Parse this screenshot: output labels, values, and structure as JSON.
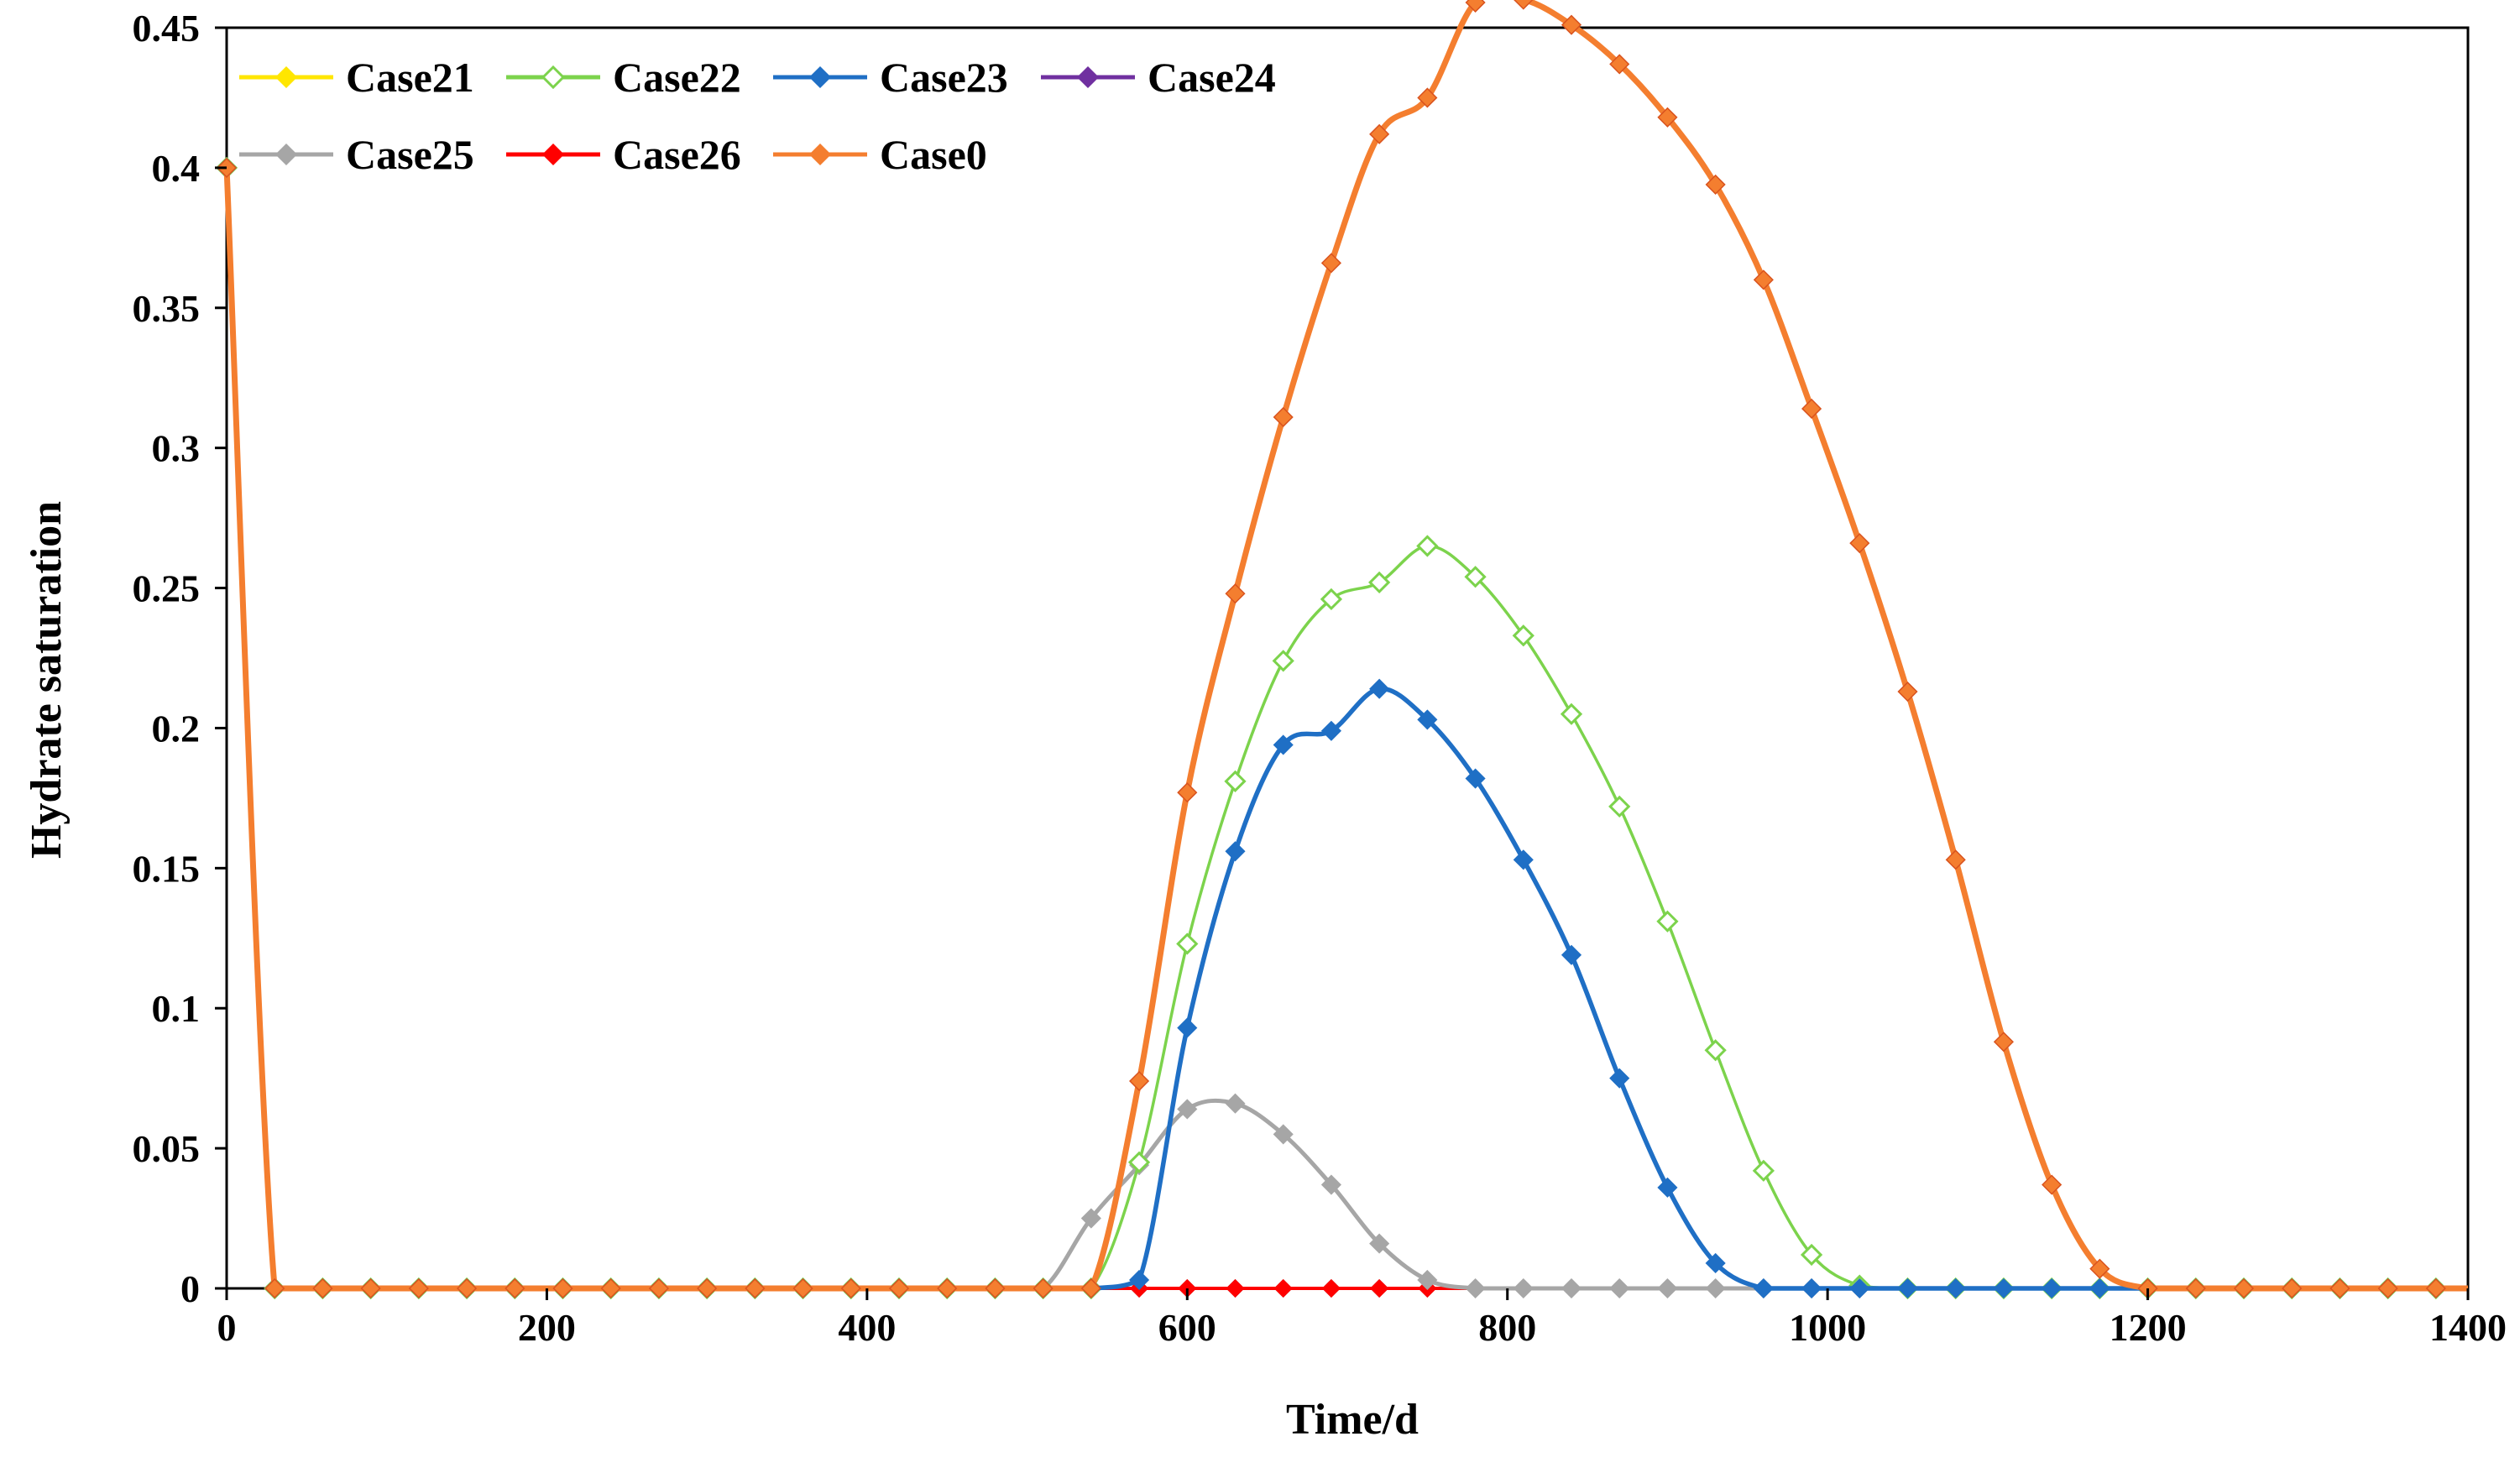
{
  "chart_data": {
    "type": "line",
    "title": "",
    "xlabel": "Time/d",
    "ylabel": "Hydrate saturation",
    "xlim": [
      0,
      1400
    ],
    "ylim": [
      0,
      0.45
    ],
    "xticks": [
      0,
      200,
      400,
      600,
      800,
      1000,
      1200,
      1400
    ],
    "yticks": [
      0,
      0.05,
      0.1,
      0.15,
      0.2,
      0.25,
      0.3,
      0.35,
      0.4,
      0.45
    ],
    "ytick_labels": [
      "0",
      "0.05",
      "0.1",
      "0.15",
      "0.2",
      "0.25",
      "0.3",
      "0.35",
      "0.4",
      "0.45"
    ],
    "legend_position": "top-left",
    "grid": false,
    "x": [
      0,
      30,
      60,
      90,
      120,
      150,
      180,
      210,
      240,
      270,
      300,
      330,
      360,
      390,
      420,
      450,
      480,
      510,
      540,
      570,
      600,
      630,
      660,
      690,
      720,
      750,
      780,
      810,
      840,
      870,
      900,
      930,
      960,
      990,
      1020,
      1050,
      1080,
      1110,
      1140,
      1170,
      1200,
      1230,
      1260,
      1290,
      1320,
      1350,
      1380,
      1400
    ],
    "series": [
      {
        "name": "Case21",
        "color": "#FFE600",
        "marker": "diamond-filled",
        "values": [
          0.4,
          0,
          0,
          0,
          0,
          0,
          0,
          0,
          0,
          0,
          0,
          0,
          0,
          0,
          0,
          0,
          0,
          0,
          0,
          0,
          0,
          0,
          0,
          0,
          0,
          0,
          0,
          0,
          0,
          0,
          0,
          0,
          0,
          0,
          0,
          0,
          0,
          0,
          0,
          0,
          0,
          0,
          0,
          0,
          0,
          0,
          0,
          0
        ]
      },
      {
        "name": "Case22",
        "color": "#7CD34C",
        "marker": "diamond-open",
        "values": [
          0.4,
          0,
          0,
          0,
          0,
          0,
          0,
          0,
          0,
          0,
          0,
          0,
          0,
          0,
          0,
          0,
          0,
          0,
          0,
          0.045,
          0.123,
          0.181,
          0.224,
          0.246,
          0.252,
          0.265,
          0.254,
          0.233,
          0.205,
          0.172,
          0.131,
          0.085,
          0.042,
          0.012,
          0.001,
          0,
          0,
          0,
          0,
          0,
          0,
          0,
          0,
          0,
          0,
          0,
          0,
          0
        ]
      },
      {
        "name": "Case23",
        "color": "#1F6FC5",
        "marker": "diamond-filled",
        "values": [
          0.4,
          0,
          0,
          0,
          0,
          0,
          0,
          0,
          0,
          0,
          0,
          0,
          0,
          0,
          0,
          0,
          0,
          0,
          0,
          0.003,
          0.093,
          0.156,
          0.194,
          0.199,
          0.214,
          0.203,
          0.182,
          0.153,
          0.119,
          0.075,
          0.036,
          0.009,
          0,
          0,
          0,
          0,
          0,
          0,
          0,
          0,
          0,
          0,
          0,
          0,
          0,
          0,
          0,
          0
        ]
      },
      {
        "name": "Case24",
        "color": "#7030A0",
        "marker": "diamond-filled",
        "values": [
          0.4,
          0,
          0,
          0,
          0,
          0,
          0,
          0,
          0,
          0,
          0,
          0,
          0,
          0,
          0,
          0,
          0,
          0,
          0,
          0,
          0,
          0,
          0,
          0,
          0,
          0,
          0,
          0,
          0,
          0,
          0,
          0,
          0,
          0,
          0,
          0,
          0,
          0,
          0,
          0,
          0,
          0,
          0,
          0,
          0,
          0,
          0,
          0
        ]
      },
      {
        "name": "Case25",
        "color": "#A6A6A6",
        "marker": "diamond-filled",
        "values": [
          0.4,
          0,
          0,
          0,
          0,
          0,
          0,
          0,
          0,
          0,
          0,
          0,
          0,
          0,
          0,
          0,
          0,
          0,
          0.025,
          0.044,
          0.064,
          0.066,
          0.055,
          0.037,
          0.016,
          0.003,
          0,
          0,
          0,
          0,
          0,
          0,
          0,
          0,
          0,
          0,
          0,
          0,
          0,
          0,
          0,
          0,
          0,
          0,
          0,
          0,
          0,
          0
        ]
      },
      {
        "name": "Case26",
        "color": "#FF0000",
        "marker": "diamond-filled",
        "values": [
          0.4,
          0,
          0,
          0,
          0,
          0,
          0,
          0,
          0,
          0,
          0,
          0,
          0,
          0,
          0,
          0,
          0,
          0,
          0,
          0,
          0,
          0,
          0,
          0,
          0,
          0,
          0,
          0,
          0,
          0,
          0,
          0,
          0,
          0,
          0,
          0,
          0,
          0,
          0,
          0,
          0,
          0,
          0,
          0,
          0,
          0,
          0,
          0
        ]
      },
      {
        "name": "Case0",
        "color": "#F47E2F",
        "marker": "diamond-filled",
        "values": [
          0.4,
          0,
          0,
          0,
          0,
          0,
          0,
          0,
          0,
          0,
          0,
          0,
          0,
          0,
          0,
          0,
          0,
          0,
          0,
          0.074,
          0.177,
          0.248,
          0.311,
          0.366,
          0.412,
          0.425,
          0.459,
          0.46,
          0.451,
          0.437,
          0.418,
          0.394,
          0.36,
          0.314,
          0.266,
          0.213,
          0.153,
          0.088,
          0.037,
          0.007,
          0,
          0,
          0,
          0,
          0,
          0,
          0,
          0
        ]
      }
    ]
  }
}
